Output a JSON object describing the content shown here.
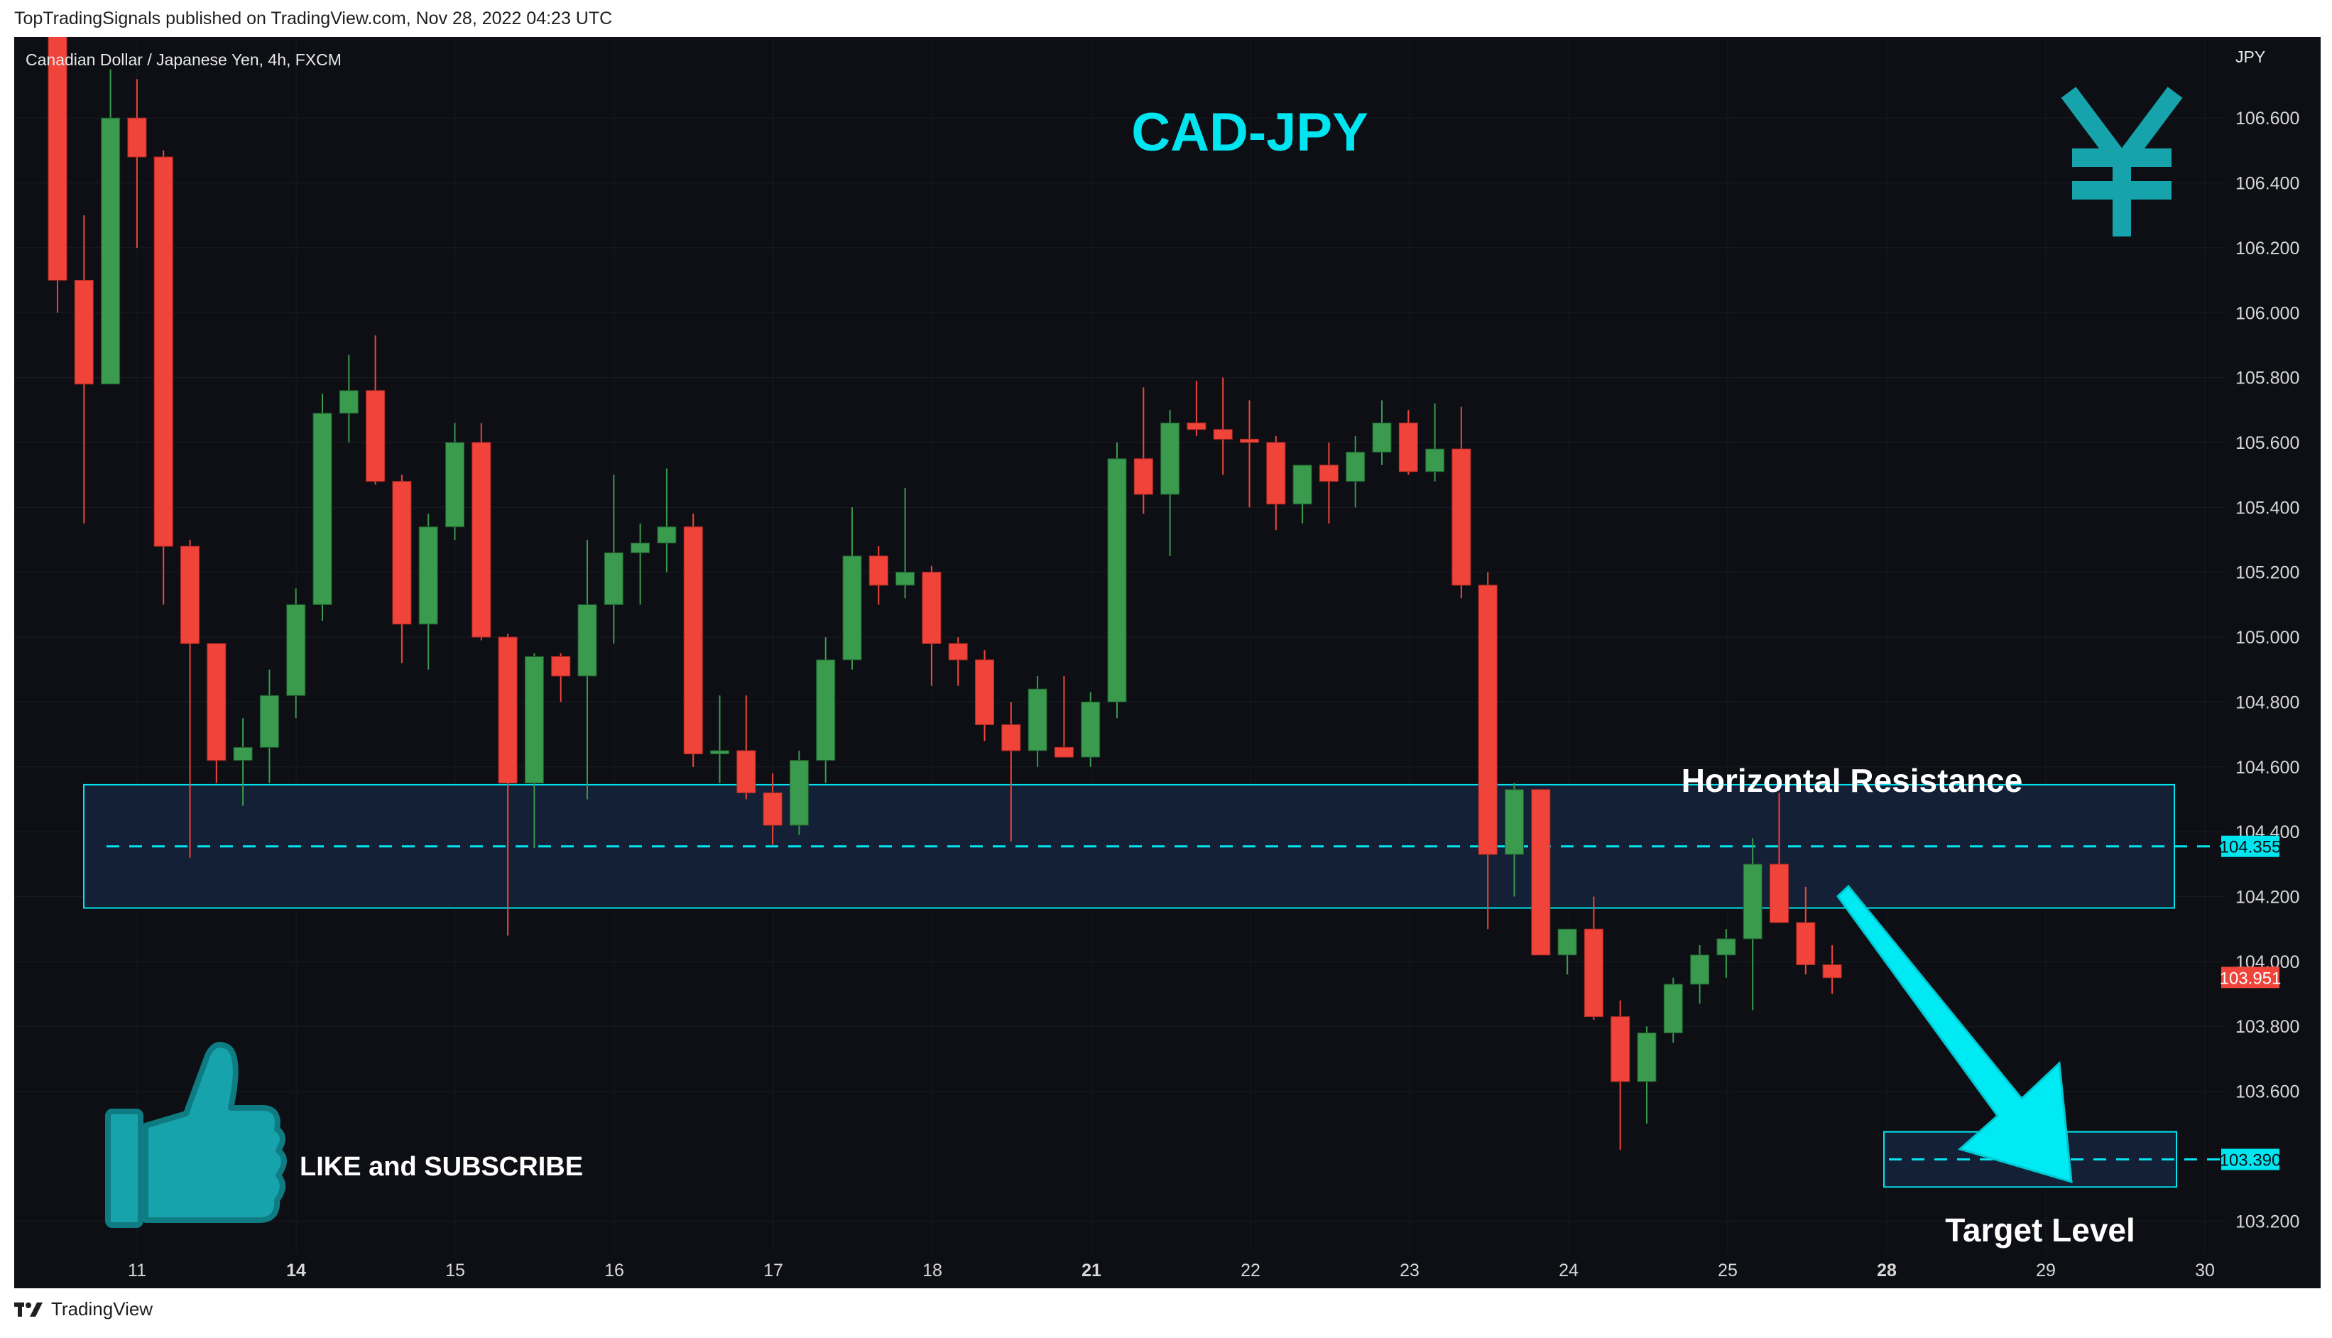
{
  "header": {
    "published": "TopTradingSignals published on TradingView.com, Nov 28, 2022 04:23 UTC"
  },
  "footer": {
    "brand": "TradingView"
  },
  "colors": {
    "background": "#0d0f14",
    "bull": "#3a9a4d",
    "bear": "#f0443a",
    "accent": "#00e5f0",
    "zone_fill": "#132035",
    "teal": "#16a3ab"
  },
  "icons": {
    "currency": "yen-icon",
    "like": "thumbs-up-icon",
    "logo": "tradingview-logo-icon"
  },
  "chart_data": {
    "type": "candlestick",
    "symbol_label": "Canadian Dollar / Japanese Yen, 4h, FXCM",
    "title": "CAD-JPY",
    "currency_unit": "JPY",
    "ylim": [
      103.1,
      106.85
    ],
    "y_ticks": [
      "106.600",
      "106.400",
      "106.200",
      "106.000",
      "105.800",
      "105.600",
      "105.400",
      "105.200",
      "105.000",
      "104.800",
      "104.600",
      "104.400",
      "104.200",
      "104.000",
      "103.800",
      "103.600",
      "103.200"
    ],
    "x_ticks": [
      {
        "label": "11",
        "bold": false
      },
      {
        "label": "14",
        "bold": true
      },
      {
        "label": "15",
        "bold": false
      },
      {
        "label": "16",
        "bold": false
      },
      {
        "label": "17",
        "bold": false
      },
      {
        "label": "18",
        "bold": false
      },
      {
        "label": "21",
        "bold": true
      },
      {
        "label": "22",
        "bold": false
      },
      {
        "label": "23",
        "bold": false
      },
      {
        "label": "24",
        "bold": false
      },
      {
        "label": "25",
        "bold": false
      },
      {
        "label": "28",
        "bold": true
      },
      {
        "label": "29",
        "bold": false
      },
      {
        "label": "30",
        "bold": false
      }
    ],
    "candles": [
      [
        106.95,
        107.05,
        106.0,
        106.1
      ],
      [
        106.1,
        106.3,
        105.35,
        105.78
      ],
      [
        105.78,
        106.75,
        105.78,
        106.6
      ],
      [
        106.6,
        106.72,
        106.2,
        106.48
      ],
      [
        106.48,
        106.5,
        105.1,
        105.28
      ],
      [
        105.28,
        105.3,
        104.32,
        104.98
      ],
      [
        104.98,
        104.98,
        104.55,
        104.62
      ],
      [
        104.62,
        104.75,
        104.48,
        104.66
      ],
      [
        104.66,
        104.9,
        104.55,
        104.82
      ],
      [
        104.82,
        105.15,
        104.75,
        105.1
      ],
      [
        105.1,
        105.75,
        105.05,
        105.69
      ],
      [
        105.69,
        105.87,
        105.6,
        105.76
      ],
      [
        105.76,
        105.93,
        105.47,
        105.48
      ],
      [
        105.48,
        105.5,
        104.92,
        105.04
      ],
      [
        105.04,
        105.38,
        104.9,
        105.34
      ],
      [
        105.34,
        105.66,
        105.3,
        105.6
      ],
      [
        105.6,
        105.66,
        104.99,
        105.0
      ],
      [
        105.0,
        105.01,
        104.08,
        104.55
      ],
      [
        104.55,
        104.95,
        104.35,
        104.94
      ],
      [
        104.94,
        104.95,
        104.8,
        104.88
      ],
      [
        104.88,
        105.3,
        104.5,
        105.1
      ],
      [
        105.1,
        105.5,
        104.98,
        105.26
      ],
      [
        105.26,
        105.35,
        105.1,
        105.29
      ],
      [
        105.29,
        105.52,
        105.2,
        105.34
      ],
      [
        105.34,
        105.38,
        104.6,
        104.64
      ],
      [
        104.64,
        104.82,
        104.55,
        104.65
      ],
      [
        104.65,
        104.82,
        104.5,
        104.52
      ],
      [
        104.52,
        104.58,
        104.36,
        104.42
      ],
      [
        104.42,
        104.65,
        104.39,
        104.62
      ],
      [
        104.62,
        105.0,
        104.55,
        104.93
      ],
      [
        104.93,
        105.4,
        104.9,
        105.25
      ],
      [
        105.25,
        105.28,
        105.1,
        105.16
      ],
      [
        105.16,
        105.46,
        105.12,
        105.2
      ],
      [
        105.2,
        105.22,
        104.85,
        104.98
      ],
      [
        104.98,
        105.0,
        104.85,
        104.93
      ],
      [
        104.93,
        104.96,
        104.68,
        104.73
      ],
      [
        104.73,
        104.8,
        104.37,
        104.65
      ],
      [
        104.65,
        104.88,
        104.6,
        104.84
      ],
      [
        104.66,
        104.88,
        104.64,
        104.63
      ],
      [
        104.63,
        104.83,
        104.6,
        104.8
      ],
      [
        104.8,
        105.6,
        104.75,
        105.55
      ],
      [
        105.55,
        105.77,
        105.38,
        105.44
      ],
      [
        105.44,
        105.7,
        105.25,
        105.66
      ],
      [
        105.66,
        105.79,
        105.62,
        105.64
      ],
      [
        105.64,
        105.8,
        105.5,
        105.61
      ],
      [
        105.61,
        105.73,
        105.4,
        105.6
      ],
      [
        105.6,
        105.62,
        105.33,
        105.41
      ],
      [
        105.41,
        105.53,
        105.35,
        105.53
      ],
      [
        105.53,
        105.6,
        105.35,
        105.48
      ],
      [
        105.48,
        105.62,
        105.4,
        105.57
      ],
      [
        105.57,
        105.73,
        105.53,
        105.66
      ],
      [
        105.66,
        105.7,
        105.5,
        105.51
      ],
      [
        105.51,
        105.72,
        105.48,
        105.58
      ],
      [
        105.58,
        105.71,
        105.12,
        105.16
      ],
      [
        105.16,
        105.2,
        104.1,
        104.33
      ],
      [
        104.33,
        104.55,
        104.2,
        104.53
      ],
      [
        104.53,
        104.53,
        104.02,
        104.02
      ],
      [
        104.02,
        104.1,
        103.96,
        104.1
      ],
      [
        104.1,
        104.2,
        103.82,
        103.83
      ],
      [
        103.83,
        103.88,
        103.42,
        103.63
      ],
      [
        103.63,
        103.8,
        103.5,
        103.78
      ],
      [
        103.78,
        103.95,
        103.75,
        103.93
      ],
      [
        103.93,
        104.05,
        103.87,
        104.02
      ],
      [
        104.02,
        104.1,
        103.95,
        104.07
      ],
      [
        104.07,
        104.38,
        103.85,
        104.3
      ],
      [
        104.3,
        104.52,
        104.12,
        104.12
      ],
      [
        104.12,
        104.23,
        103.96,
        103.99
      ],
      [
        103.99,
        104.05,
        103.9,
        103.95
      ]
    ],
    "annotations": {
      "resistance_label": "Horizontal Resistance",
      "resistance_zone": [
        104.165,
        104.545
      ],
      "resistance_level": 104.355,
      "resistance_tag": "104.355",
      "current_price": 103.951,
      "current_tag": "103.951",
      "target_label": "Target Level",
      "target_zone": [
        103.305,
        103.475
      ],
      "target_level": 103.39,
      "target_tag": "103.390",
      "cta_text": "LIKE and SUBSCRIBE"
    }
  }
}
